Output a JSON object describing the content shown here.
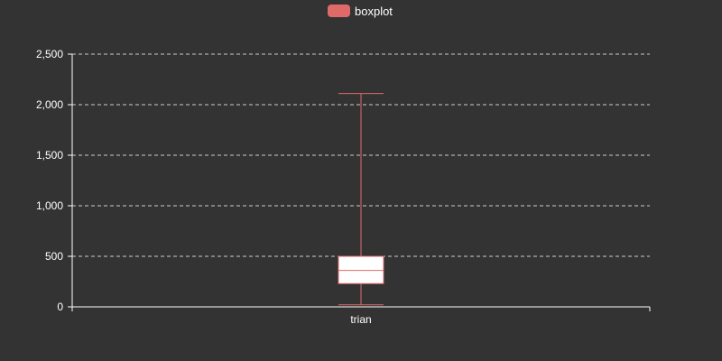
{
  "chart_data": {
    "type": "boxplot",
    "legend": {
      "entries": [
        {
          "label": "boxplot",
          "color": "#e06a6a"
        }
      ],
      "placement": "top-center"
    },
    "categories": [
      "trian"
    ],
    "series": [
      {
        "name": "boxplot",
        "boxes": [
          {
            "category": "trian",
            "min": 20,
            "q1": 230,
            "median": 360,
            "q3": 500,
            "max": 2110
          }
        ]
      }
    ],
    "ylim": [
      0,
      2500
    ],
    "yticks": [
      0,
      500,
      1000,
      1500,
      2000,
      2500
    ],
    "ytick_labels": [
      "0",
      "500",
      "1,000",
      "1,500",
      "2,000",
      "2,500"
    ],
    "grid": true,
    "colors": {
      "background": "#333333",
      "box_stroke": "#e06a6a",
      "box_fill": "#ffffff",
      "axis": "#ffffff",
      "grid": "#cccccc",
      "text": "#ffffff"
    }
  }
}
